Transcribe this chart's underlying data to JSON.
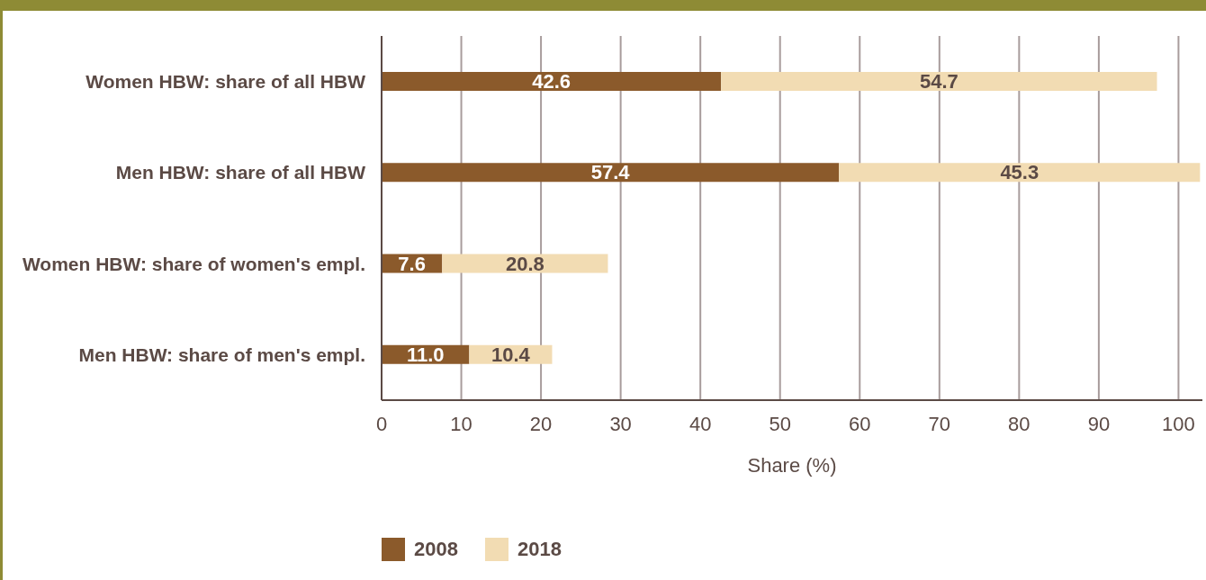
{
  "chart_data": {
    "type": "bar",
    "orientation": "horizontal",
    "stacked": true,
    "categories": [
      "Women HBW: share of all HBW",
      "Men HBW: share of all HBW",
      "Women HBW: share of women's empl.",
      "Men HBW: share of men's empl."
    ],
    "series": [
      {
        "name": "2008",
        "color": "#8b5a2b",
        "values": [
          42.6,
          57.4,
          7.6,
          11.0
        ],
        "value_labels": [
          "42.6",
          "57.4",
          "7.6",
          "11.0"
        ]
      },
      {
        "name": "2018",
        "color": "#f2dcb3",
        "values": [
          54.7,
          45.3,
          20.8,
          10.4
        ],
        "value_labels": [
          "54.7",
          "45.3",
          "20.8",
          "10.4"
        ]
      }
    ],
    "xlim": [
      0,
      103
    ],
    "xticks": [
      0,
      10,
      20,
      30,
      40,
      50,
      60,
      70,
      80,
      90,
      100
    ],
    "xlabel": "Share (%)",
    "grid": "x",
    "legend": "bottom left"
  }
}
